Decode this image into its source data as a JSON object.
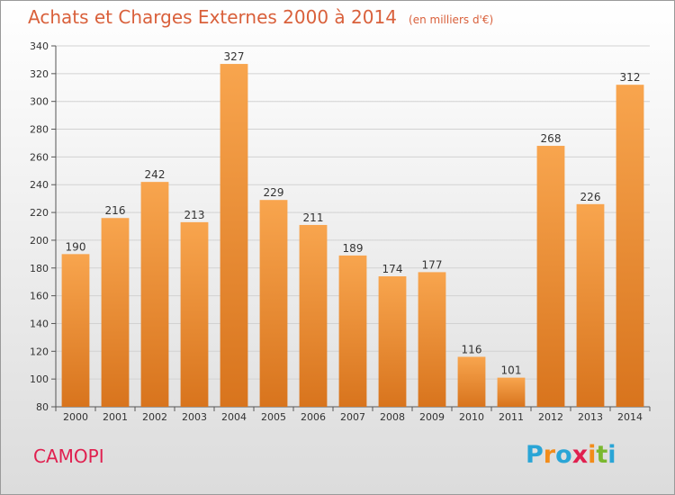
{
  "header": {
    "title": "Achats et Charges Externes 2000 à 2014",
    "subtitle": "(en milliers d'€)"
  },
  "footer": {
    "commune": "CAMOPI",
    "logo_text": "Proxiti"
  },
  "colors": {
    "title": "#d9603b",
    "commune": "#e0204f",
    "bar_light": "#f8a54e",
    "bar_dark": "#d8741d",
    "logo_letters": [
      "#2aa5d6",
      "#f28c1a",
      "#2aa5d6",
      "#e0204f",
      "#f28c1a",
      "#7ab82f",
      "#2aa5d6"
    ]
  },
  "chart_data": {
    "type": "bar",
    "categories": [
      "2000",
      "2001",
      "2002",
      "2003",
      "2004",
      "2005",
      "2006",
      "2007",
      "2008",
      "2009",
      "2010",
      "2011",
      "2012",
      "2013",
      "2014"
    ],
    "values": [
      190,
      216,
      242,
      213,
      327,
      229,
      211,
      189,
      174,
      177,
      116,
      101,
      268,
      226,
      312
    ],
    "ylim": [
      80,
      340
    ],
    "yticks": [
      80,
      100,
      120,
      140,
      160,
      180,
      200,
      220,
      240,
      260,
      280,
      300,
      320,
      340
    ],
    "grid": true,
    "data_labels": true
  }
}
